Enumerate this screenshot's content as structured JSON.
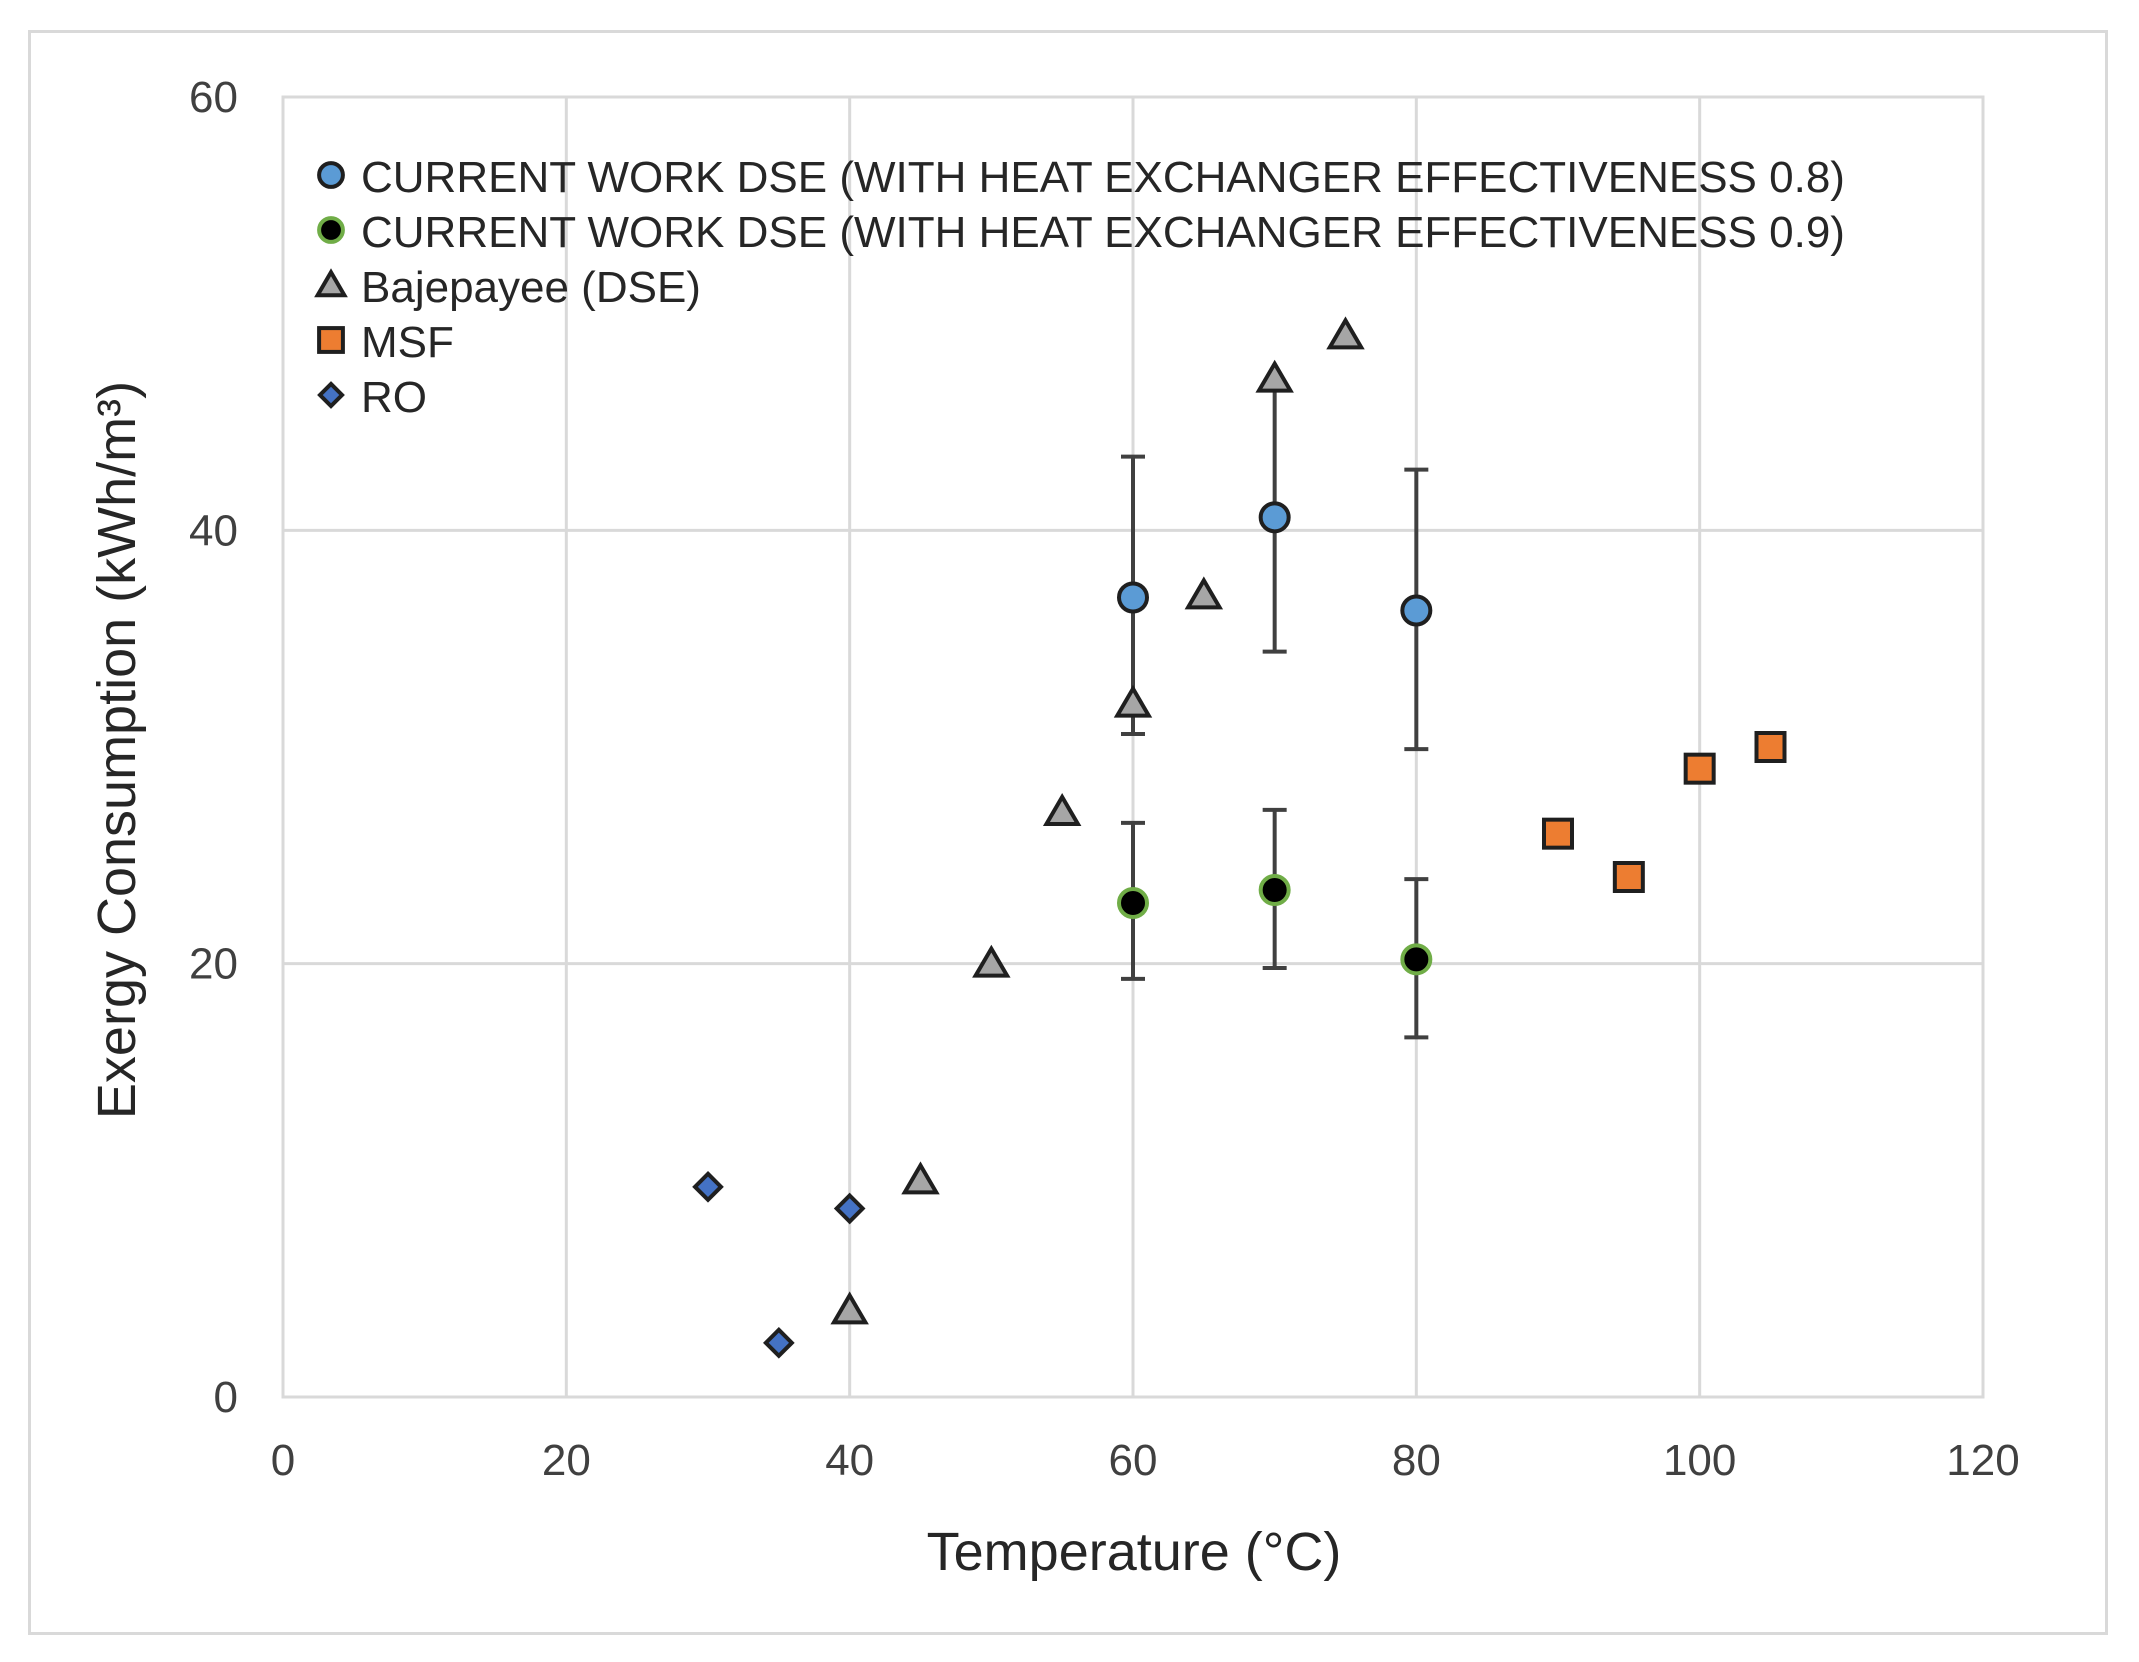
{
  "chart_data": {
    "type": "scatter",
    "title": "",
    "xlabel": "Temperature (°C)",
    "ylabel": "Exergy Consumption (kWh/m³)",
    "xlim": [
      0,
      120
    ],
    "ylim": [
      0,
      60
    ],
    "xticks": [
      "0",
      "20",
      "40",
      "60",
      "80",
      "100",
      "120"
    ],
    "yticks": [
      "0",
      "20",
      "40",
      "60"
    ],
    "grid": true,
    "legend_position": "top-left",
    "series": [
      {
        "name": "CURRENT WORK DSE (WITH HEAT EXCHANGER EFFECTIVENESS 0.8)",
        "marker": "circle",
        "fill": "#5b9bd5",
        "stroke": "#1f1f1f",
        "points": [
          {
            "x": 60,
            "y": 36.9,
            "err_low": 30.6,
            "err_high": 43.4
          },
          {
            "x": 70,
            "y": 40.6,
            "err_low": 34.4,
            "err_high": 46.7
          },
          {
            "x": 80,
            "y": 36.3,
            "err_low": 29.9,
            "err_high": 42.8
          }
        ]
      },
      {
        "name": "CURRENT WORK DSE (WITH HEAT EXCHANGER EFFECTIVENESS 0.9)",
        "marker": "circle",
        "fill": "#000000",
        "stroke": "#70ad47",
        "points": [
          {
            "x": 60,
            "y": 22.8,
            "err_low": 19.3,
            "err_high": 26.5
          },
          {
            "x": 70,
            "y": 23.4,
            "err_low": 19.8,
            "err_high": 27.1
          },
          {
            "x": 80,
            "y": 20.2,
            "err_low": 16.6,
            "err_high": 23.9
          }
        ]
      },
      {
        "name": "Bajepayee (DSE)",
        "marker": "triangle",
        "fill": "#a6a6a6",
        "stroke": "#1f1f1f",
        "points": [
          {
            "x": 40,
            "y": 4
          },
          {
            "x": 45,
            "y": 10
          },
          {
            "x": 50,
            "y": 20
          },
          {
            "x": 55,
            "y": 27
          },
          {
            "x": 60,
            "y": 32
          },
          {
            "x": 65,
            "y": 37
          },
          {
            "x": 70,
            "y": 47
          },
          {
            "x": 75,
            "y": 49
          }
        ]
      },
      {
        "name": "MSF",
        "marker": "square",
        "fill": "#ed7d31",
        "stroke": "#1f1f1f",
        "points": [
          {
            "x": 90,
            "y": 26
          },
          {
            "x": 95,
            "y": 24
          },
          {
            "x": 100,
            "y": 29
          },
          {
            "x": 105,
            "y": 30
          }
        ]
      },
      {
        "name": "RO",
        "marker": "diamond",
        "fill": "#4472c4",
        "stroke": "#1f1f1f",
        "points": [
          {
            "x": 30,
            "y": 9.7
          },
          {
            "x": 35,
            "y": 2.5
          },
          {
            "x": 40,
            "y": 8.7
          }
        ]
      }
    ],
    "colors": {
      "grid": "#d9d9d9",
      "error_bar": "#404040",
      "frame": "#d9d9d9"
    }
  }
}
